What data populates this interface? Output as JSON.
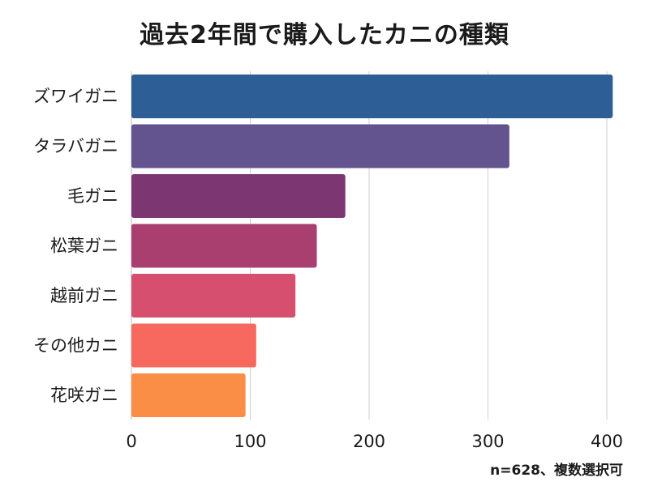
{
  "chart_data": {
    "type": "bar",
    "orientation": "horizontal",
    "title": "過去2年間で購入したカニの種類",
    "note": "n=628、複数選択可",
    "categories": [
      "ズワイガニ",
      "タラバガニ",
      "毛ガニ",
      "松葉ガニ",
      "越前ガニ",
      "その他カニ",
      "花咲ガニ"
    ],
    "values": [
      405,
      318,
      180,
      156,
      138,
      105,
      96
    ],
    "colors": [
      "#2d5f96",
      "#63538f",
      "#7c3672",
      "#a93f6e",
      "#d74f6e",
      "#f7685e",
      "#fa8e46"
    ],
    "xlim": [
      0,
      400
    ],
    "xticks": [
      "0",
      "100",
      "200",
      "300",
      "400"
    ],
    "grid": true,
    "xlabel": "",
    "ylabel": ""
  }
}
